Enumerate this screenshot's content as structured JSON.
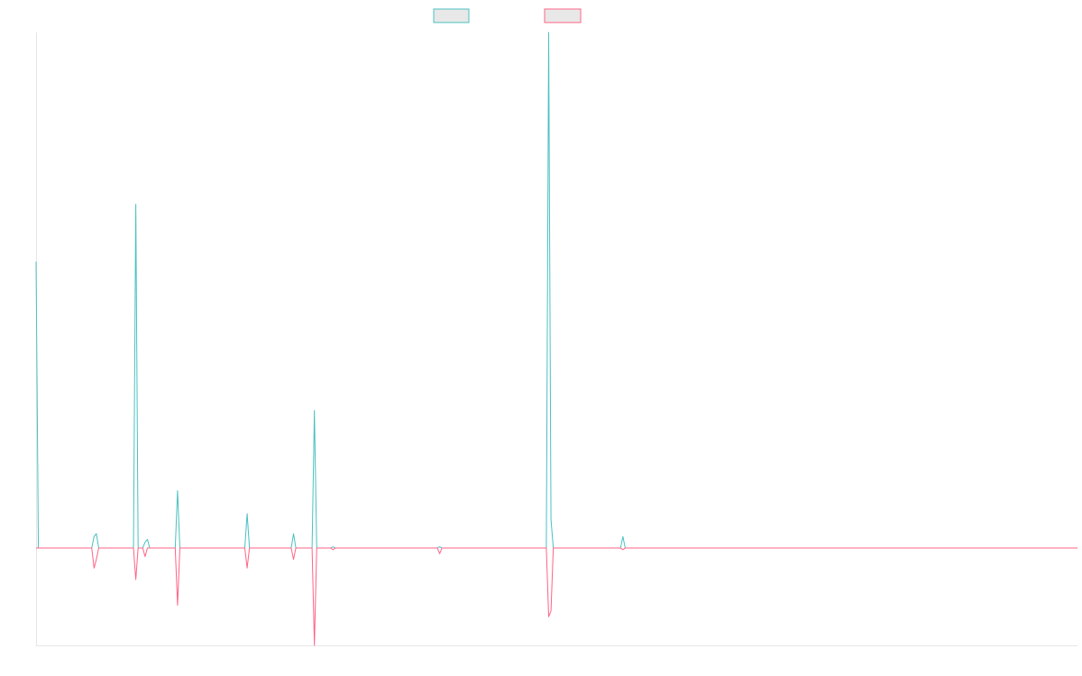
{
  "chart_data": {
    "type": "line",
    "title": "",
    "xlabel": "",
    "ylabel": "",
    "grid": false,
    "legend_placement": "top-center",
    "ylim": [
      -0.34,
      1.8
    ],
    "x_count": 450,
    "series": [
      {
        "color": "#4bc0c0",
        "points": [
          [
            0,
            1.0
          ],
          [
            1,
            0
          ],
          [
            24,
            0
          ],
          [
            25,
            0.04
          ],
          [
            26,
            0.05
          ],
          [
            27,
            0
          ],
          [
            42,
            0
          ],
          [
            43,
            1.2
          ],
          [
            44,
            0
          ],
          [
            46,
            0
          ],
          [
            47,
            0.02
          ],
          [
            48,
            0.03
          ],
          [
            49,
            0
          ],
          [
            60,
            0
          ],
          [
            61,
            0.2
          ],
          [
            62,
            0
          ],
          [
            90,
            0
          ],
          [
            91,
            0.12
          ],
          [
            92,
            0
          ],
          [
            110,
            0
          ],
          [
            111,
            0.05
          ],
          [
            112,
            0
          ],
          [
            119,
            0
          ],
          [
            120,
            0.48
          ],
          [
            121,
            0
          ],
          [
            127,
            0
          ],
          [
            128,
            0.004
          ],
          [
            129,
            0
          ],
          [
            173,
            0
          ],
          [
            174,
            0.004
          ],
          [
            175,
            0
          ],
          [
            220,
            0
          ],
          [
            221,
            1.8
          ],
          [
            222,
            0.1
          ],
          [
            223,
            0
          ],
          [
            252,
            0
          ],
          [
            253,
            0.04
          ],
          [
            254,
            0
          ],
          [
            449,
            0
          ]
        ]
      },
      {
        "color": "#ff6384",
        "points": [
          [
            0,
            0
          ],
          [
            24,
            0
          ],
          [
            25,
            -0.07
          ],
          [
            26,
            -0.04
          ],
          [
            27,
            0
          ],
          [
            42,
            0
          ],
          [
            43,
            -0.11
          ],
          [
            44,
            0
          ],
          [
            46,
            0
          ],
          [
            47,
            -0.03
          ],
          [
            48,
            0
          ],
          [
            60,
            0
          ],
          [
            61,
            -0.2
          ],
          [
            62,
            0
          ],
          [
            90,
            0
          ],
          [
            91,
            -0.07
          ],
          [
            92,
            0
          ],
          [
            110,
            0
          ],
          [
            111,
            -0.04
          ],
          [
            112,
            0
          ],
          [
            119,
            0
          ],
          [
            120,
            -0.34
          ],
          [
            121,
            0
          ],
          [
            127,
            0
          ],
          [
            128,
            -0.006
          ],
          [
            129,
            0
          ],
          [
            173,
            0
          ],
          [
            174,
            -0.02
          ],
          [
            175,
            0
          ],
          [
            220,
            0
          ],
          [
            221,
            -0.24
          ],
          [
            222,
            -0.22
          ],
          [
            223,
            0
          ],
          [
            252,
            0
          ],
          [
            253,
            -0.006
          ],
          [
            254,
            0
          ],
          [
            449,
            0
          ]
        ]
      }
    ]
  }
}
